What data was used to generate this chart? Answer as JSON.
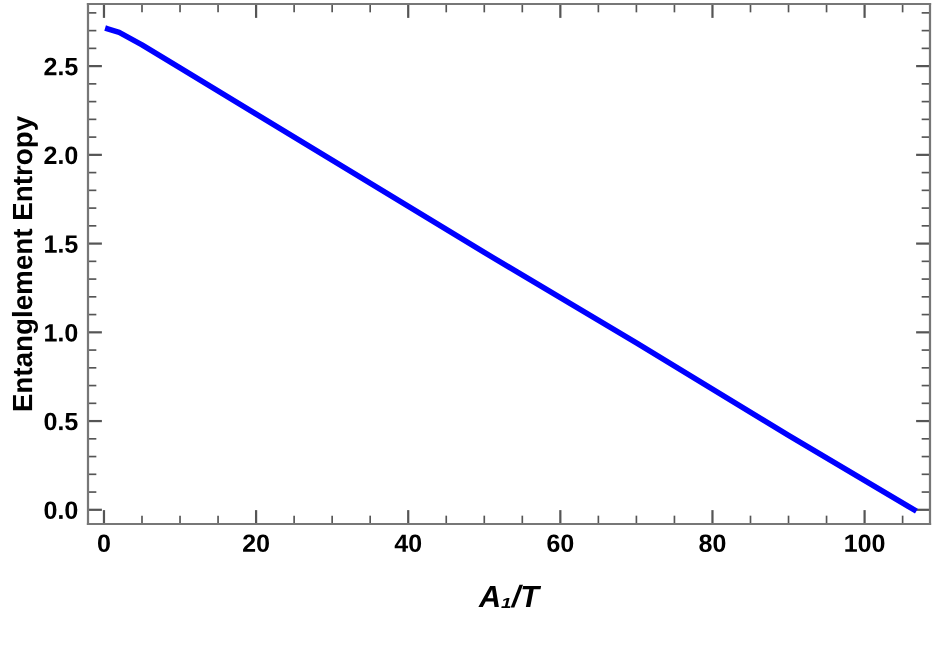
{
  "chart_data": {
    "type": "line",
    "xlabel": "A₁/T",
    "ylabel": "Entanglement Entropy",
    "x": [
      0.5,
      2,
      5,
      10,
      30,
      50,
      70,
      90,
      106.5
    ],
    "series": [
      {
        "color": "#0000ff",
        "values": [
          2.71,
          2.69,
          2.62,
          2.49,
          1.97,
          1.45,
          0.94,
          0.42,
          0.0
        ]
      }
    ],
    "xlim": [
      -2.1,
      108.6
    ],
    "ylim": [
      -0.08,
      2.85
    ],
    "xticks": [
      0,
      20,
      40,
      60,
      80,
      100
    ],
    "yticks": [
      {
        "value": 0,
        "label": "0.0"
      },
      0.5,
      {
        "value": 1,
        "label": "1.0"
      },
      1.5,
      {
        "value": 2,
        "label": "2.0"
      },
      2.5
    ],
    "grid": false,
    "legend": false,
    "marker": "none",
    "line_style": "solid"
  }
}
